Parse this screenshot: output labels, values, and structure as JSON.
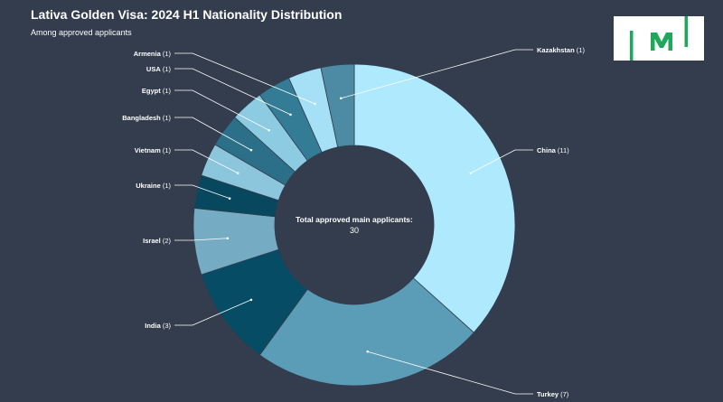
{
  "chart_data": {
    "type": "pie",
    "variant": "donut",
    "title": "Lativa Golden Visa: 2024 H1 Nationality Distribution",
    "subtitle": "Among approved applicants",
    "center_label": {
      "title": "Total approved main applicants:",
      "value": "30"
    },
    "slices": [
      {
        "name": "China",
        "value": 11,
        "color": "#aee9fd"
      },
      {
        "name": "Turkey",
        "value": 7,
        "color": "#5b9db6"
      },
      {
        "name": "India",
        "value": 3,
        "color": "#064c64"
      },
      {
        "name": "Israel",
        "value": 2,
        "color": "#75acc3"
      },
      {
        "name": "Ukraine",
        "value": 1,
        "color": "#07485e"
      },
      {
        "name": "Vietnam",
        "value": 1,
        "color": "#8cc6dd"
      },
      {
        "name": "Bangladesh",
        "value": 1,
        "color": "#2b6f88"
      },
      {
        "name": "Egypt",
        "value": 1,
        "color": "#8ccbe2"
      },
      {
        "name": "USA",
        "value": 1,
        "color": "#347b95"
      },
      {
        "name": "Armenia",
        "value": 1,
        "color": "#a5e0f6"
      },
      {
        "name": "Kazakhstan",
        "value": 1,
        "color": "#4c8ba3"
      }
    ]
  },
  "logo": {
    "text": "|M|",
    "color": "#1fa85a"
  }
}
